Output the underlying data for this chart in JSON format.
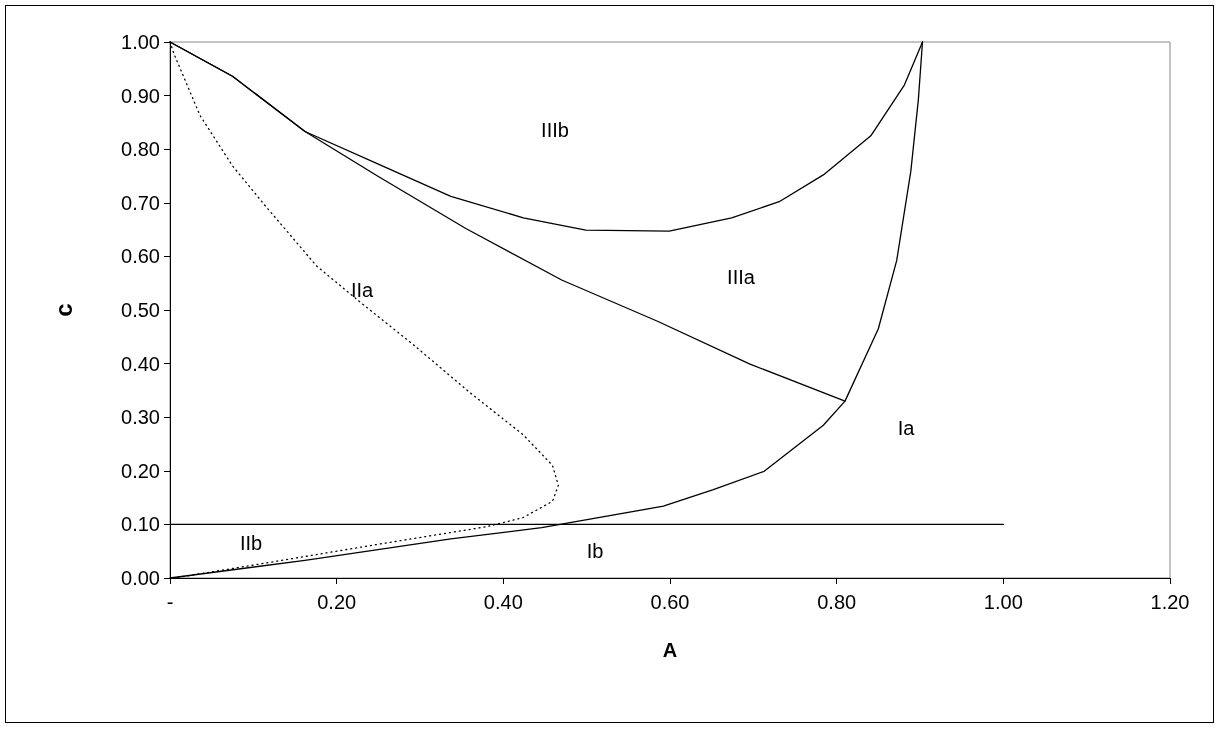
{
  "chart_data": {
    "type": "line",
    "xlabel": "A",
    "ylabel": "c",
    "xlim": [
      0,
      1.2
    ],
    "ylim": [
      0,
      1
    ],
    "xticks": [
      {
        "value": 0,
        "label": "-"
      },
      {
        "value": 0.2,
        "label": "0.20"
      },
      {
        "value": 0.4,
        "label": "0.40"
      },
      {
        "value": 0.6,
        "label": "0.60"
      },
      {
        "value": 0.8,
        "label": "0.80"
      },
      {
        "value": 1.0,
        "label": "1.00"
      },
      {
        "value": 1.2,
        "label": "1.20"
      }
    ],
    "yticks": [
      {
        "value": 0,
        "label": "0.00"
      },
      {
        "value": 0.1,
        "label": "0.10"
      },
      {
        "value": 0.2,
        "label": "0.20"
      },
      {
        "value": 0.3,
        "label": "0.30"
      },
      {
        "value": 0.4,
        "label": "0.40"
      },
      {
        "value": 0.5,
        "label": "0.50"
      },
      {
        "value": 0.6,
        "label": "0.60"
      },
      {
        "value": 0.7,
        "label": "0.70"
      },
      {
        "value": 0.8,
        "label": "0.80"
      },
      {
        "value": 0.9,
        "label": "0.90"
      },
      {
        "value": 1.0,
        "label": "1.00"
      }
    ],
    "grid": false,
    "marker": "none",
    "series": [
      {
        "color": "#000000",
        "line_style": "solid",
        "x": [
          0,
          0.075,
          0.162,
          0.25,
          0.337,
          0.424,
          0.499,
          0.599,
          0.674,
          0.731,
          0.784,
          0.841,
          0.881,
          0.903
        ],
        "values": [
          1.0,
          0.936,
          0.833,
          0.772,
          0.712,
          0.672,
          0.649,
          0.647,
          0.672,
          0.702,
          0.752,
          0.825,
          0.919,
          1.0
        ]
      },
      {
        "color": "#000000",
        "line_style": "solid",
        "x": [
          0,
          0.075,
          0.162,
          0.25,
          0.355,
          0.47,
          0.585,
          0.696,
          0.81
        ],
        "values": [
          1.0,
          0.936,
          0.833,
          0.749,
          0.652,
          0.556,
          0.479,
          0.399,
          0.33
        ]
      },
      {
        "color": "#000000",
        "line_style": "solid",
        "x": [
          0,
          0.162,
          0.337,
          0.446,
          0.592,
          0.652,
          0.713,
          0.784,
          0.81,
          0.85,
          0.872,
          0.889,
          0.898,
          0.903
        ],
        "values": [
          0,
          0.033,
          0.073,
          0.094,
          0.134,
          0.165,
          0.199,
          0.285,
          0.33,
          0.465,
          0.592,
          0.759,
          0.892,
          1.0
        ]
      },
      {
        "color": "#000000",
        "line_style": "dotted",
        "x": [
          0,
          0.005,
          0.036,
          0.075,
          0.114,
          0.176,
          0.228,
          0.293,
          0.359,
          0.424,
          0.459,
          0.466,
          0.459,
          0.424,
          0.381,
          0.25,
          0.119,
          0.005
        ],
        "values": [
          1.0,
          0.977,
          0.863,
          0.769,
          0.695,
          0.582,
          0.515,
          0.434,
          0.347,
          0.267,
          0.21,
          0.173,
          0.143,
          0.113,
          0.096,
          0.063,
          0.029,
          0.0
        ]
      },
      {
        "color": "#000000",
        "line_style": "solid",
        "x": [
          0,
          1.0
        ],
        "values": [
          0.1,
          0.1
        ]
      }
    ],
    "annotations": [
      "IIIb",
      "IIIa",
      "IIa",
      "Ia",
      "IIb",
      "Ib"
    ]
  }
}
